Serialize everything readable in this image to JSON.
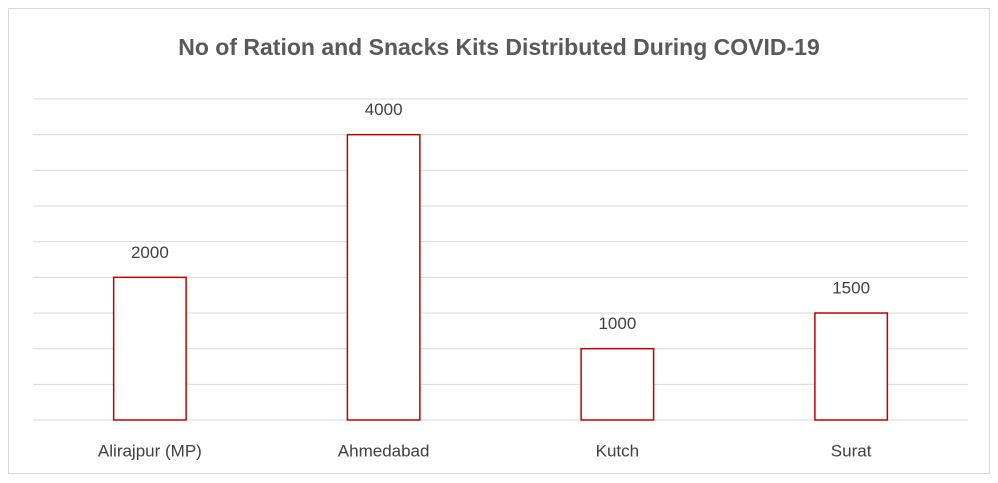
{
  "chart_data": {
    "type": "bar",
    "title": "No of Ration and Snacks Kits Distributed During COVID-19",
    "categories": [
      "Alirajpur (MP)",
      "Ahmedabad",
      "Kutch",
      "Surat"
    ],
    "values": [
      2000,
      4000,
      1000,
      1500
    ],
    "color": "#c00000",
    "ylim": [
      0,
      4500
    ],
    "yticks": [
      0,
      500,
      1000,
      1500,
      2000,
      2500,
      3000,
      3500,
      4000,
      4500
    ],
    "grid": true
  }
}
